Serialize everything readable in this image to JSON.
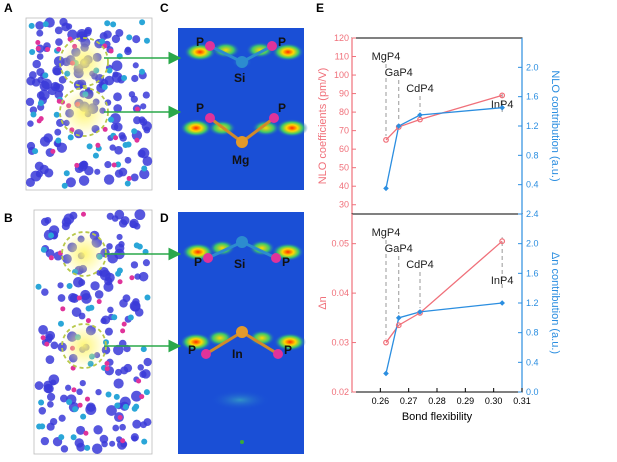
{
  "panels": {
    "A": "A",
    "B": "B",
    "C": "C",
    "D": "D",
    "E": "E"
  },
  "atoms": {
    "c_left_p": "P",
    "c_right_p": "P",
    "c_si": "Si",
    "c_left_p2": "P",
    "c_right_p2": "P",
    "c_mg": "Mg",
    "d_left_p": "P",
    "d_right_p": "P",
    "d_si": "Si",
    "d_left_p2": "P",
    "d_in": "In",
    "d_right_p2": "P"
  },
  "colors": {
    "red_series": "#f0707a",
    "blue_series": "#2b8ee0",
    "arrow": "#2aa84a",
    "contour_bg": "#1a4fd6"
  },
  "chart_data": [
    {
      "type": "line",
      "title": "",
      "xlabel": "",
      "ylabel": "NLO coefficients (pm/V)",
      "ylabel_right": "NLO contribution (a.u.)",
      "xlim": [
        0.25,
        0.31
      ],
      "ylim": [
        25,
        120
      ],
      "ylim_right": [
        0.0,
        2.4
      ],
      "yticks": [
        "30",
        "40",
        "50",
        "60",
        "70",
        "80",
        "90",
        "100",
        "110",
        "120"
      ],
      "yticks_right": [
        "0.4",
        "0.8",
        "1.2",
        "1.6",
        "2.0"
      ],
      "annotations": [
        "MgP4",
        "GaP4",
        "CdP4",
        "InP4"
      ],
      "annotation_x": [
        0.262,
        0.2665,
        0.274,
        0.303
      ],
      "series": [
        {
          "name": "NLO coefficients",
          "axis": "left",
          "color": "#f0707a",
          "x": [
            0.262,
            0.2665,
            0.274,
            0.303
          ],
          "y": [
            65,
            72,
            76,
            89
          ]
        },
        {
          "name": "NLO contribution",
          "axis": "right",
          "color": "#2b8ee0",
          "x": [
            0.262,
            0.2665,
            0.274,
            0.303
          ],
          "y": [
            0.35,
            1.2,
            1.35,
            1.45
          ]
        }
      ]
    },
    {
      "type": "line",
      "title": "",
      "xlabel": "Bond flexibility",
      "ylabel": "Δn",
      "ylabel_right": "Δn contribution (a.u.)",
      "xlim": [
        0.25,
        0.31
      ],
      "ylim": [
        0.02,
        0.056
      ],
      "ylim_right": [
        0.0,
        2.4
      ],
      "xticks": [
        "0.26",
        "0.27",
        "0.28",
        "0.29",
        "0.30",
        "0.31"
      ],
      "yticks": [
        "0.02",
        "0.03",
        "0.04",
        "0.05"
      ],
      "yticks_right": [
        "0.0",
        "0.4",
        "0.8",
        "1.2",
        "1.6",
        "2.0",
        "2.4"
      ],
      "annotations": [
        "MgP4",
        "GaP4",
        "CdP4",
        "InP4"
      ],
      "annotation_x": [
        0.262,
        0.2665,
        0.274,
        0.303
      ],
      "series": [
        {
          "name": "Δn",
          "axis": "left",
          "color": "#f0707a",
          "x": [
            0.262,
            0.2665,
            0.274,
            0.303
          ],
          "y": [
            0.03,
            0.0335,
            0.036,
            0.0505
          ]
        },
        {
          "name": "Δn contribution",
          "axis": "right",
          "color": "#2b8ee0",
          "x": [
            0.262,
            0.2665,
            0.274,
            0.303
          ],
          "y": [
            0.25,
            1.0,
            1.08,
            1.2
          ]
        }
      ]
    }
  ]
}
